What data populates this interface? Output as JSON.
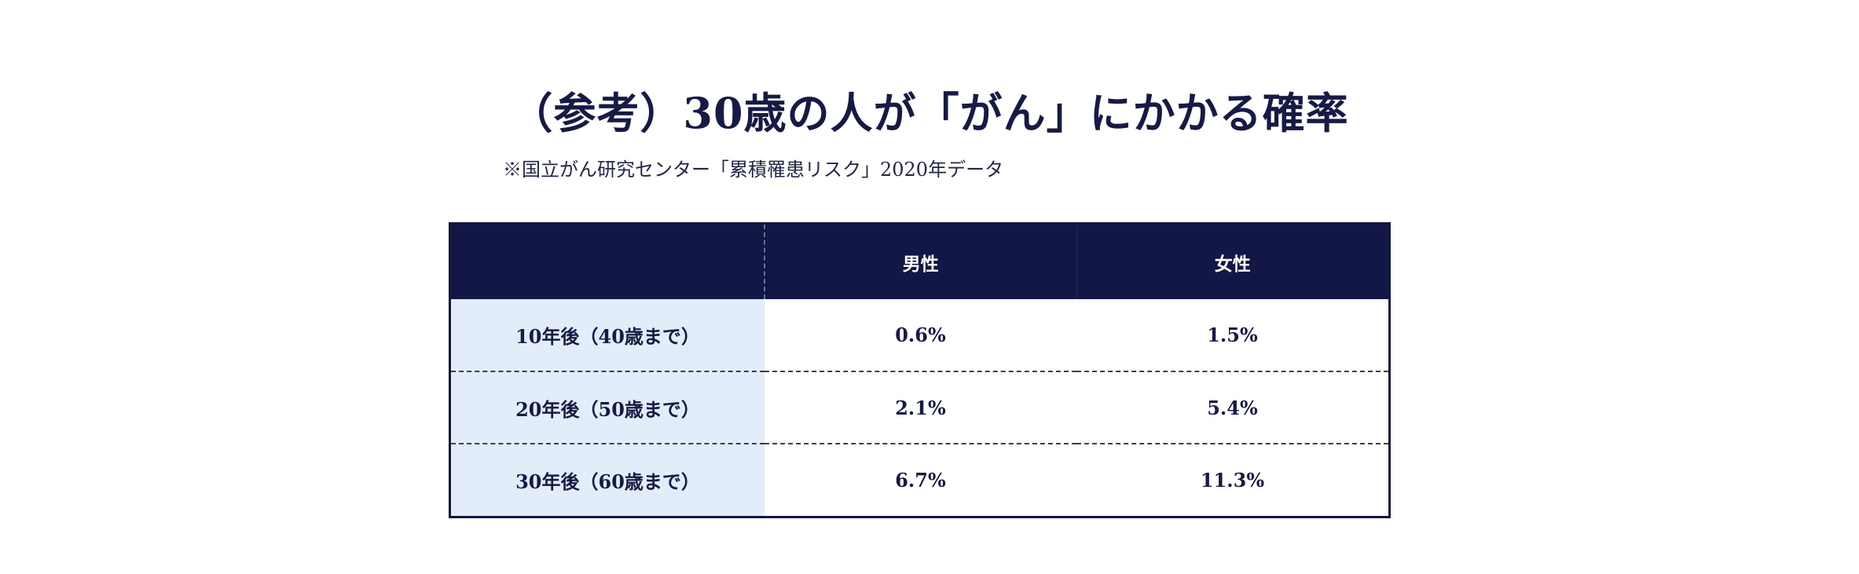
{
  "title": "（参考）30歳の人が「がん」にかかる確率",
  "source_note": "※国立がん研究センター「累積罹患リスク」2020年データ",
  "table": {
    "headers": [
      "",
      "男性",
      "女性"
    ],
    "rows": [
      {
        "label": "10年後（40歳まで）",
        "male": "0.6%",
        "female": "1.5%"
      },
      {
        "label": "20年後（50歳まで）",
        "male": "2.1%",
        "female": "5.4%"
      },
      {
        "label": "30年後（60歳まで）",
        "male": "6.7%",
        "female": "11.3%"
      }
    ]
  },
  "colors": {
    "header_bg": "#131745",
    "row_label_bg": "#e3edf9",
    "text": "#161a45"
  }
}
